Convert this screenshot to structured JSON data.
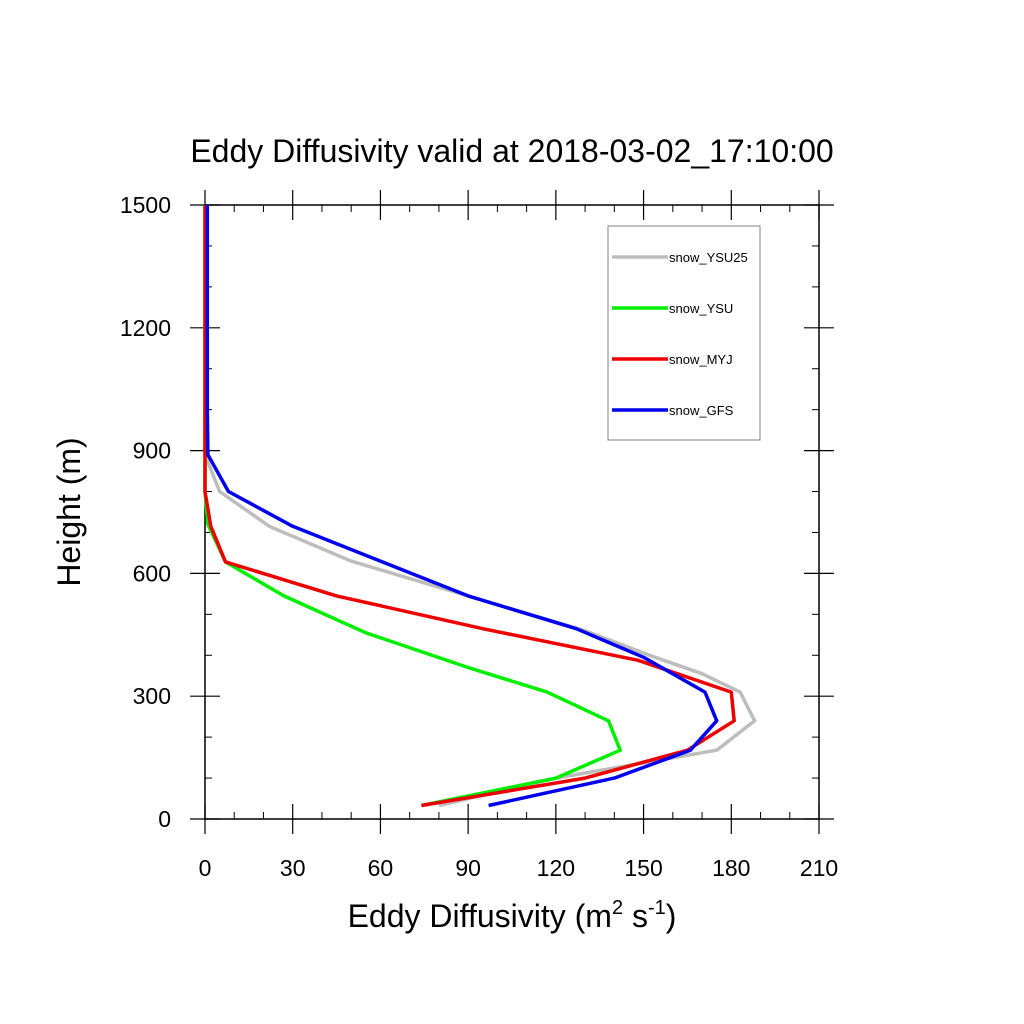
{
  "chart_data": {
    "type": "line",
    "title": "Eddy Diffusivity valid at 2018-03-02_17:10:00",
    "xlabel": {
      "base": "Eddy Diffusivity (m",
      "sup1": "2",
      "mid": " s",
      "sup2": "-1",
      "end": ")"
    },
    "ylabel": "Height (m)",
    "xlim": [
      0,
      210
    ],
    "ylim": [
      0,
      1500
    ],
    "xticks": [
      0,
      30,
      60,
      90,
      120,
      150,
      180,
      210
    ],
    "yticks": [
      0,
      300,
      600,
      900,
      1200,
      1500
    ],
    "x_minor_step": 10,
    "y_minor_step": 100,
    "legend_position": "top-right",
    "series": [
      {
        "name": "snow_YSU25",
        "color": "#bdbdbd",
        "points": [
          [
            80,
            33
          ],
          [
            120,
            100
          ],
          [
            175,
            168
          ],
          [
            188,
            240
          ],
          [
            183,
            310
          ],
          [
            170,
            355
          ],
          [
            152,
            400
          ],
          [
            130,
            460
          ],
          [
            90,
            545
          ],
          [
            50,
            630
          ],
          [
            22,
            715
          ],
          [
            5,
            800
          ],
          [
            0,
            890
          ],
          [
            0,
            1000
          ],
          [
            0,
            1200
          ],
          [
            0,
            1500
          ]
        ]
      },
      {
        "name": "snow_YSU",
        "color": "#00ee00",
        "points": [
          [
            74,
            33
          ],
          [
            120,
            100
          ],
          [
            142,
            168
          ],
          [
            138,
            240
          ],
          [
            117,
            310
          ],
          [
            90,
            370
          ],
          [
            55,
            455
          ],
          [
            27,
            545
          ],
          [
            7,
            628
          ],
          [
            1,
            720
          ],
          [
            0,
            800
          ],
          [
            0,
            890
          ],
          [
            0,
            1000
          ],
          [
            0,
            1200
          ],
          [
            0,
            1500
          ]
        ]
      },
      {
        "name": "snow_MYJ",
        "color": "#ee0000",
        "points": [
          [
            74,
            33
          ],
          [
            130,
            100
          ],
          [
            165,
            168
          ],
          [
            181,
            240
          ],
          [
            180,
            310
          ],
          [
            148,
            388
          ],
          [
            95,
            465
          ],
          [
            45,
            545
          ],
          [
            7,
            628
          ],
          [
            2,
            715
          ],
          [
            0,
            800
          ],
          [
            0,
            890
          ],
          [
            0,
            1000
          ],
          [
            0,
            1200
          ],
          [
            0,
            1500
          ]
        ]
      },
      {
        "name": "snow_GFS",
        "color": "#0000ee",
        "points": [
          [
            97,
            33
          ],
          [
            140,
            100
          ],
          [
            166,
            168
          ],
          [
            175,
            240
          ],
          [
            171,
            310
          ],
          [
            150,
            395
          ],
          [
            127,
            465
          ],
          [
            90,
            545
          ],
          [
            60,
            630
          ],
          [
            30,
            715
          ],
          [
            8,
            800
          ],
          [
            1,
            890
          ],
          [
            0.8,
            1000
          ],
          [
            0.8,
            1200
          ],
          [
            0.8,
            1500
          ]
        ]
      }
    ]
  }
}
